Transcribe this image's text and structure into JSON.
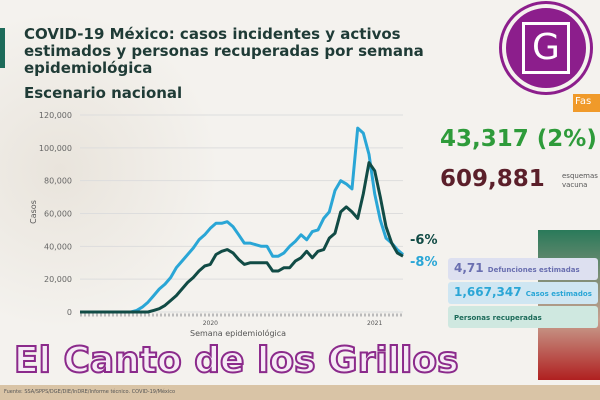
{
  "header": {
    "title": "COVID-19 México: casos incidentes y activos estimados y personas recuperadas por semana epidemiológica",
    "subtitle": "Escenario nacional"
  },
  "stats": {
    "value1": "43,317 (2%)",
    "value2": "609,881",
    "value2_note": "esquemas vacuna",
    "tag": "Fas"
  },
  "tiles": [
    {
      "value": "1,667,347",
      "label": "Casos estimados"
    },
    {
      "value": "",
      "label": "Personas recuperadas"
    },
    {
      "value": "4,71",
      "label": "Defunciones estimadas"
    }
  ],
  "footer": {
    "source": "Fuente: SSA/SPPS/DGE/DIE/InDRE/Informe técnico. COVID-19/México"
  },
  "watermark": "El Canto de los Grillos",
  "logo": "G",
  "chart_data": {
    "type": "line",
    "xlabel": "Semana epidemiológica",
    "ylabel": "Casos",
    "ylim": [
      0,
      120000
    ],
    "yticks": [
      "0",
      "20,000",
      "40,000",
      "60,000",
      "80,000",
      "100,000",
      "120,000"
    ],
    "xticks": [
      {
        "label": "2020",
        "week": 24
      },
      {
        "label": "2021",
        "week": 53
      }
    ],
    "colors": {
      "light": "#2aa6d6",
      "dark": "#114b45"
    },
    "series": [
      {
        "name": "light",
        "end_label": "-8%",
        "values": [
          0,
          0,
          0,
          0,
          0,
          0,
          0,
          0,
          0,
          0,
          1000,
          3000,
          6000,
          10000,
          14000,
          17000,
          21000,
          27000,
          31000,
          35000,
          39000,
          44000,
          47000,
          51000,
          54000,
          54000,
          55000,
          52000,
          47000,
          42000,
          42000,
          41000,
          40000,
          40000,
          34000,
          34000,
          36000,
          40000,
          43000,
          47000,
          44000,
          49000,
          50000,
          57000,
          61000,
          74000,
          80000,
          78000,
          75000,
          112000,
          109000,
          96000,
          72000,
          56000,
          45000,
          42000,
          38000,
          35000
        ]
      },
      {
        "name": "dark",
        "end_label": "-6%",
        "values": [
          0,
          0,
          0,
          0,
          0,
          0,
          0,
          0,
          0,
          0,
          0,
          0,
          0,
          1000,
          2000,
          4000,
          7000,
          10000,
          14000,
          18000,
          21000,
          25000,
          28000,
          29000,
          35000,
          37000,
          38000,
          36000,
          32000,
          29000,
          30000,
          30000,
          30000,
          30000,
          25000,
          25000,
          27000,
          27000,
          31000,
          33000,
          37000,
          33000,
          37000,
          38000,
          45000,
          48000,
          61000,
          64000,
          61000,
          57000,
          72000,
          91000,
          86000,
          70000,
          52000,
          42000,
          36000,
          34000
        ]
      }
    ]
  }
}
